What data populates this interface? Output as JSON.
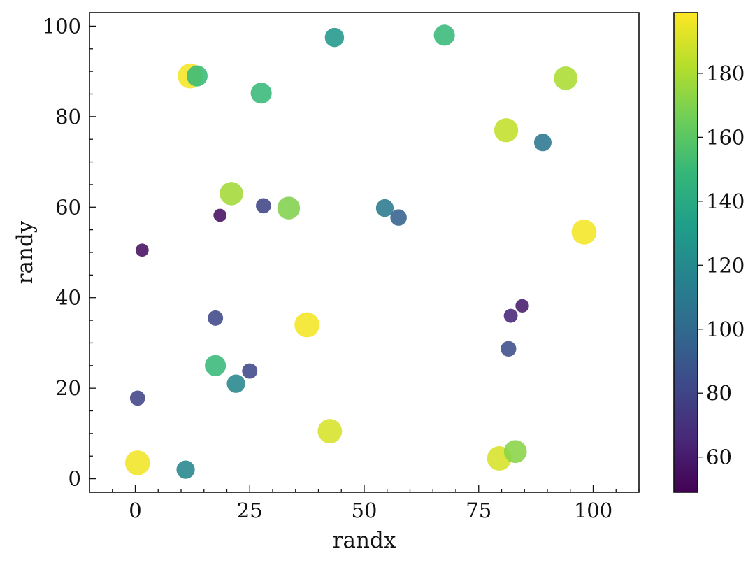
{
  "chart_data": {
    "type": "scatter",
    "title": "",
    "xlabel": "randx",
    "ylabel": "randy",
    "xlim": [
      -10,
      110
    ],
    "ylim": [
      -3,
      103
    ],
    "xticks": [
      "0",
      "25",
      "50",
      "75",
      "100"
    ],
    "xtick_values": [
      0,
      25,
      50,
      75,
      100
    ],
    "yticks": [
      "0",
      "20",
      "40",
      "60",
      "80",
      "100"
    ],
    "ytick_values": [
      0,
      20,
      40,
      60,
      80,
      100
    ],
    "colorbar": {
      "colormap": "viridis",
      "range": [
        49,
        199
      ],
      "ticks": [
        "60",
        "80",
        "100",
        "120",
        "140",
        "160",
        "180"
      ],
      "tick_values": [
        60,
        80,
        100,
        120,
        140,
        160,
        180
      ],
      "stops": [
        "#440154",
        "#482878",
        "#3e4989",
        "#31688e",
        "#26828e",
        "#1f9e89",
        "#35b779",
        "#6ece58",
        "#b5de2b",
        "#fde725"
      ]
    },
    "marker_size_encodes": "color value",
    "points": [
      {
        "x": 0.5,
        "y": 3.5,
        "c": 196
      },
      {
        "x": 11,
        "y": 2,
        "c": 118
      },
      {
        "x": 0.5,
        "y": 17.8,
        "c": 80
      },
      {
        "x": 1.5,
        "y": 50.5,
        "c": 55
      },
      {
        "x": 12,
        "y": 89,
        "c": 197
      },
      {
        "x": 13.5,
        "y": 89,
        "c": 150
      },
      {
        "x": 17.5,
        "y": 35.5,
        "c": 82
      },
      {
        "x": 17.5,
        "y": 25,
        "c": 150
      },
      {
        "x": 18.5,
        "y": 58.2,
        "c": 55
      },
      {
        "x": 21,
        "y": 63,
        "c": 178
      },
      {
        "x": 22,
        "y": 21,
        "c": 118
      },
      {
        "x": 25,
        "y": 23.8,
        "c": 82
      },
      {
        "x": 27.5,
        "y": 85.2,
        "c": 150
      },
      {
        "x": 28,
        "y": 60.3,
        "c": 80
      },
      {
        "x": 33.5,
        "y": 59.8,
        "c": 170
      },
      {
        "x": 37.5,
        "y": 34,
        "c": 197
      },
      {
        "x": 42.5,
        "y": 10.5,
        "c": 190
      },
      {
        "x": 43.5,
        "y": 97.5,
        "c": 128
      },
      {
        "x": 54.5,
        "y": 59.8,
        "c": 110
      },
      {
        "x": 57.5,
        "y": 57.7,
        "c": 95
      },
      {
        "x": 67.5,
        "y": 98,
        "c": 150
      },
      {
        "x": 79.5,
        "y": 4.5,
        "c": 190
      },
      {
        "x": 81,
        "y": 77,
        "c": 185
      },
      {
        "x": 81.5,
        "y": 28.7,
        "c": 85
      },
      {
        "x": 82,
        "y": 36,
        "c": 65
      },
      {
        "x": 83,
        "y": 6,
        "c": 172
      },
      {
        "x": 84.5,
        "y": 38.2,
        "c": 60
      },
      {
        "x": 89,
        "y": 74.3,
        "c": 108
      },
      {
        "x": 94,
        "y": 88.5,
        "c": 180
      },
      {
        "x": 98,
        "y": 54.5,
        "c": 197
      }
    ]
  }
}
